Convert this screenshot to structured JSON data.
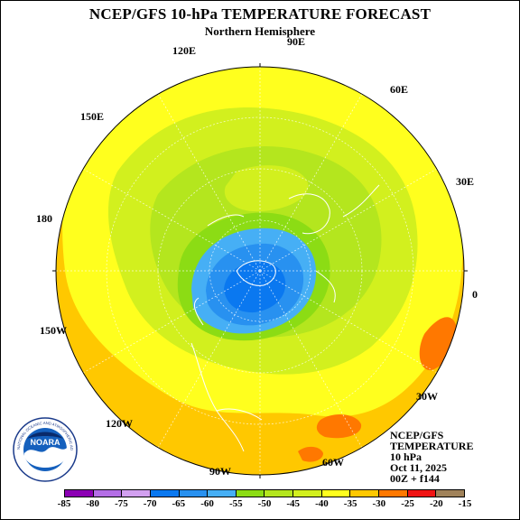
{
  "header": {
    "title": "NCEP/GFS 10-hPa TEMPERATURE FORECAST",
    "subtitle": "Northern Hemisphere"
  },
  "longitude_labels": [
    "90E",
    "60E",
    "30E",
    "0",
    "30W",
    "60W",
    "90W",
    "120W",
    "150W",
    "180",
    "150E",
    "120E"
  ],
  "info_block": [
    "NCEP/GFS",
    "TEMPERATURE",
    "10 hPa",
    "Oct 11, 2025",
    "00Z + f144"
  ],
  "logo": {
    "text": "NOARA",
    "ring_text": "NATIONAL OCEANIC AND ATMOSPHERIC ADMINISTRATION · U.S. DEPARTMENT OF COMMERCE"
  },
  "colorbar": {
    "labels": [
      "-85",
      "-80",
      "-75",
      "-70",
      "-65",
      "-60",
      "-55",
      "-50",
      "-45",
      "-40",
      "-35",
      "-30",
      "-25",
      "-20",
      "-15"
    ],
    "colors": [
      "#8c00b4",
      "#b46ee6",
      "#d2a0f0",
      "#0a78f0",
      "#2891f0",
      "#46aff5",
      "#8cdc14",
      "#b4e61e",
      "#d2f01e",
      "#ffff1e",
      "#ffc800",
      "#ff7800",
      "#f01414",
      "#a0825a",
      "#a0a0a0"
    ]
  },
  "map_fill": {
    "polar_vortex": "#2891f0",
    "cold_core": "#0a78f0",
    "ring_light_blue": "#46aff5",
    "ring_green": "#8cdc14",
    "mid_green": "#b4e61e",
    "yellow_green": "#d2f01e",
    "yellow": "#ffff1e",
    "orange": "#ffc800",
    "warm_orange": "#ff7800",
    "red": "#f01414",
    "coast": "#ffffff"
  }
}
